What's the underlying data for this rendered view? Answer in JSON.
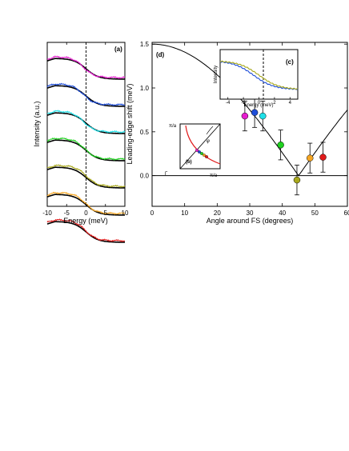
{
  "chart_data": [
    {
      "panel": "(a)",
      "type": "line",
      "xlabel": "Energy (meV)",
      "ylabel": "Intensity (a.u.)",
      "xlim": [
        -10,
        10
      ],
      "xticks": [
        "-10",
        "-5",
        "0",
        "5",
        "10"
      ],
      "grid": false,
      "series": [
        {
          "color": "#e61ecf",
          "reference_color": "#000000",
          "shift_meV": 0.68
        },
        {
          "color": "#1f4ed8",
          "reference_color": "#000000",
          "shift_meV": 0.72
        },
        {
          "color": "#1fe0e8",
          "reference_color": "#000000",
          "shift_meV": 0.68
        },
        {
          "color": "#1fd11f",
          "reference_color": "#000000",
          "shift_meV": 0.35
        },
        {
          "color": "#a8a81c",
          "reference_color": "#000000",
          "shift_meV": -0.05
        },
        {
          "color": "#f5a623",
          "reference_color": "#000000",
          "shift_meV": 0.2
        },
        {
          "color": "#e01b1b",
          "reference_color": "#000000",
          "shift_meV": 0.21
        }
      ]
    },
    {
      "panel": "(d)",
      "type": "scatter",
      "xlabel": "Angle around FS (degrees)",
      "ylabel": "Leading-edge shift (meV)",
      "xlim": [
        0,
        60
      ],
      "ylim": [
        -0.35,
        1.52
      ],
      "xticks": [
        "0",
        "10",
        "20",
        "30",
        "40",
        "50",
        "60"
      ],
      "yticks": [
        "0.0",
        "0.5",
        "1.0",
        "1.5"
      ],
      "grid": false,
      "points": [
        {
          "x": 28.5,
          "y": 0.68,
          "err": 0.17,
          "color": "#e61ecf"
        },
        {
          "x": 31.5,
          "y": 0.72,
          "err": 0.17,
          "color": "#1f4ed8"
        },
        {
          "x": 34.0,
          "y": 0.68,
          "err": 0.17,
          "color": "#1fe0e8"
        },
        {
          "x": 39.5,
          "y": 0.35,
          "err": 0.17,
          "color": "#1fd11f"
        },
        {
          "x": 44.5,
          "y": -0.05,
          "err": 0.17,
          "color": "#a8a81c"
        },
        {
          "x": 48.5,
          "y": 0.2,
          "err": 0.17,
          "color": "#f5a623"
        },
        {
          "x": 52.5,
          "y": 0.21,
          "err": 0.17,
          "color": "#e01b1b"
        }
      ],
      "model_curve": "|cos(2θ)|, amplitude 1.5 meV",
      "zero_line": true
    },
    {
      "panel": "(c)",
      "type": "line",
      "xlabel": "Energy (meV)",
      "ylabel": "Intensity",
      "xlim": [
        -5,
        5
      ],
      "xticks": [
        "-4",
        "-2",
        "0",
        "2",
        "4"
      ],
      "series": [
        {
          "color": "#1f4ed8"
        },
        {
          "color": "#a8a81c"
        }
      ]
    },
    {
      "panel": "(b)",
      "type": "diagram",
      "labels": [
        "π/a",
        "π/a",
        "Γ",
        "(b)"
      ],
      "angle_label": "φ"
    }
  ]
}
